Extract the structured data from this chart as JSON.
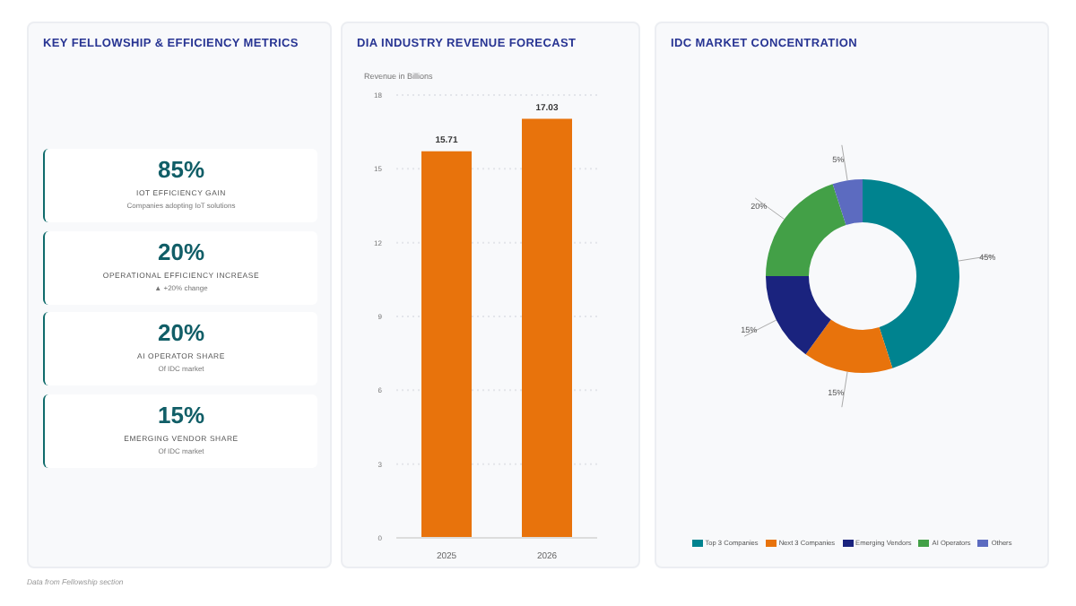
{
  "chart_data": [
    {
      "type": "other",
      "title": "KEY FELLOWSHIP & EFFICIENCY METRICS",
      "categories": [
        "IOT EFFICIENCY GAIN",
        "OPERATIONAL EFFICIENCY INCREASE",
        "AI OPERATOR SHARE",
        "EMERGING VENDOR SHARE"
      ],
      "value_labels": [
        "85%",
        "20%",
        "20%",
        "15%"
      ],
      "annotations": [
        "Companies adopting IoT solutions",
        "▲ +20% change",
        "Of IDC market",
        "Of IDC market"
      ]
    },
    {
      "type": "bar",
      "title": "DIA INDUSTRY REVENUE FORECAST",
      "ylabel": "Revenue in Billions",
      "categories": [
        "2025",
        "2026"
      ],
      "values": [
        15.71,
        17.03
      ],
      "color": "#e8730c",
      "ylim": [
        0,
        18
      ],
      "yticks": [
        0,
        3,
        6,
        9,
        12,
        15,
        18
      ],
      "grid": "y",
      "data_labels": true,
      "annotations": [
        "Data from Fellowship section"
      ]
    },
    {
      "type": "donut",
      "title": "IDC MARKET CONCENTRATION",
      "categories": [
        "Top 3 Companies",
        "Next 3 Companies",
        "Emerging Vendors",
        "AI Operators",
        "Others"
      ],
      "values": [
        45,
        15,
        15,
        20,
        5
      ],
      "value_labels": [
        "45%",
        "15%",
        "15%",
        "20%",
        "5%"
      ],
      "colors": [
        "#00838f",
        "#e8730c",
        "#1a237e",
        "#43a047",
        "#5c6bc0"
      ],
      "legend": "bottom"
    }
  ]
}
